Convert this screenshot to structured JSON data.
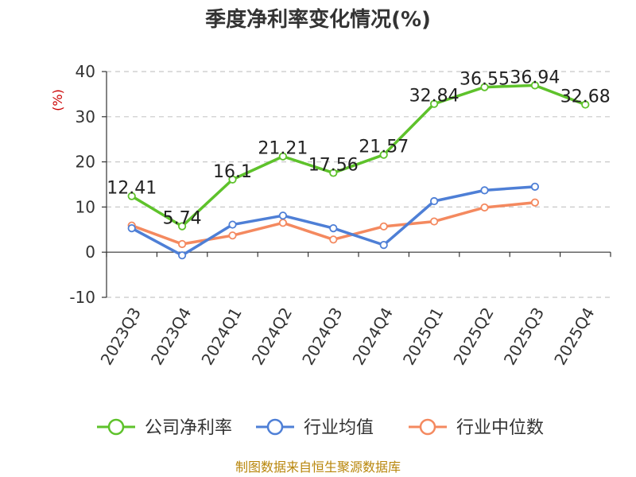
{
  "chart_data": {
    "type": "line",
    "title": "季度净利率变化情况(%)",
    "ylabel": "(%)",
    "categories": [
      "2023Q3",
      "2023Q4",
      "2024Q1",
      "2024Q2",
      "2024Q3",
      "2024Q4",
      "2025Q1",
      "2025Q2",
      "2025Q3",
      "2025Q4"
    ],
    "ylim": [
      -10,
      40
    ],
    "yticks": [
      -10,
      0,
      10,
      20,
      30,
      40
    ],
    "grid": true,
    "legend_position": "bottom",
    "series": [
      {
        "name": "公司净利率",
        "color": "#5ec22b",
        "labels": true,
        "values": [
          12.41,
          5.74,
          16.1,
          21.21,
          17.56,
          21.57,
          32.84,
          36.55,
          36.94,
          32.68
        ]
      },
      {
        "name": "行业均值",
        "color": "#4e7fd6",
        "labels": false,
        "values": [
          5.3,
          -0.7,
          6.1,
          8.1,
          5.3,
          1.6,
          11.3,
          13.7,
          14.5,
          null
        ]
      },
      {
        "name": "行业中位数",
        "color": "#f4895f",
        "labels": false,
        "values": [
          5.9,
          1.8,
          3.7,
          6.5,
          2.8,
          5.7,
          6.8,
          9.9,
          11.0,
          null
        ]
      }
    ]
  },
  "source": "制图数据来自恒生聚源数据库"
}
